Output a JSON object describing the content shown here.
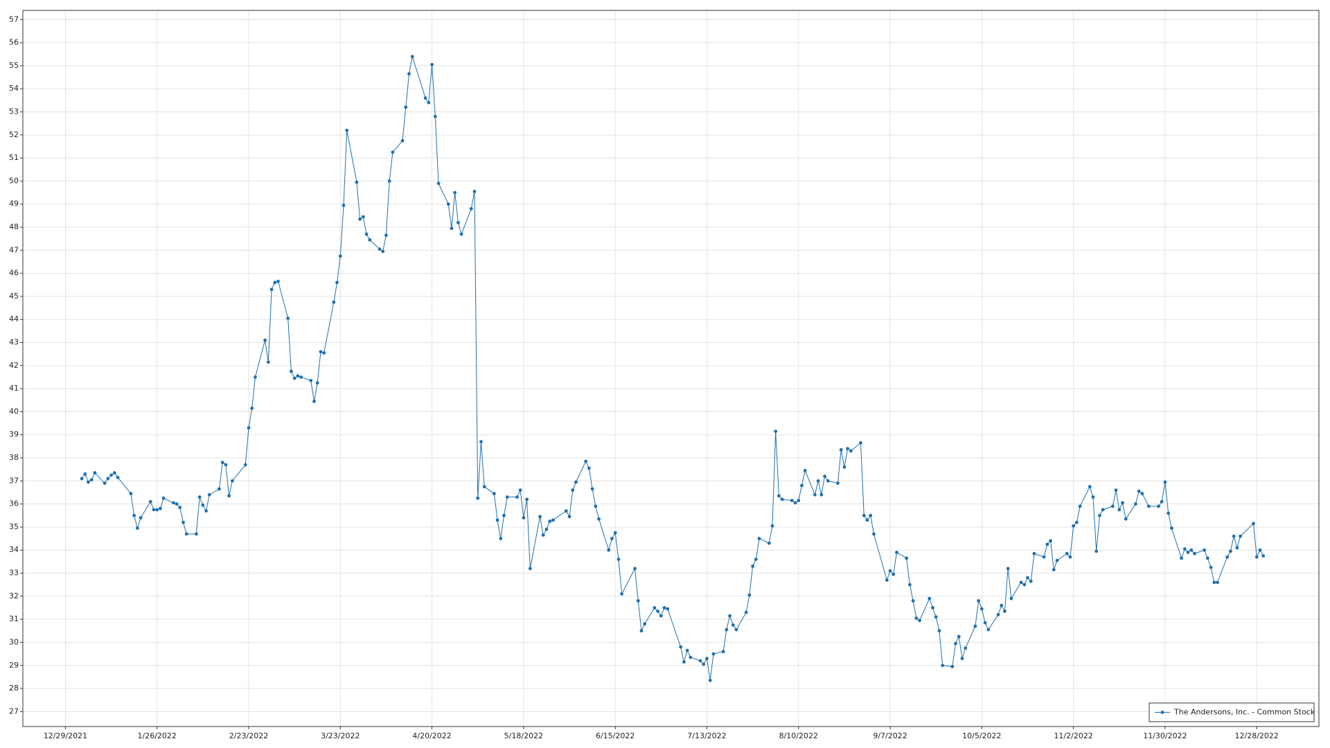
{
  "chart_data": {
    "type": "line",
    "x": [
      "1/3/2022",
      "1/4/2022",
      "1/5/2022",
      "1/6/2022",
      "1/7/2022",
      "1/10/2022",
      "1/11/2022",
      "1/12/2022",
      "1/13/2022",
      "1/14/2022",
      "1/18/2022",
      "1/19/2022",
      "1/20/2022",
      "1/21/2022",
      "1/24/2022",
      "1/25/2022",
      "1/26/2022",
      "1/27/2022",
      "1/28/2022",
      "1/31/2022",
      "2/1/2022",
      "2/2/2022",
      "2/3/2022",
      "2/4/2022",
      "2/7/2022",
      "2/8/2022",
      "2/9/2022",
      "2/10/2022",
      "2/11/2022",
      "2/14/2022",
      "2/15/2022",
      "2/16/2022",
      "2/17/2022",
      "2/18/2022",
      "2/22/2022",
      "2/23/2022",
      "2/24/2022",
      "2/25/2022",
      "2/28/2022",
      "3/1/2022",
      "3/2/2022",
      "3/3/2022",
      "3/4/2022",
      "3/7/2022",
      "3/8/2022",
      "3/9/2022",
      "3/10/2022",
      "3/11/2022",
      "3/14/2022",
      "3/15/2022",
      "3/16/2022",
      "3/17/2022",
      "3/18/2022",
      "3/21/2022",
      "3/22/2022",
      "3/23/2022",
      "3/24/2022",
      "3/25/2022",
      "3/28/2022",
      "3/29/2022",
      "3/30/2022",
      "3/31/2022",
      "4/1/2022",
      "4/4/2022",
      "4/5/2022",
      "4/6/2022",
      "4/7/2022",
      "4/8/2022",
      "4/11/2022",
      "4/12/2022",
      "4/13/2022",
      "4/14/2022",
      "4/18/2022",
      "4/19/2022",
      "4/20/2022",
      "4/21/2022",
      "4/22/2022",
      "4/25/2022",
      "4/26/2022",
      "4/27/2022",
      "4/28/2022",
      "4/29/2022",
      "5/2/2022",
      "5/3/2022",
      "5/4/2022",
      "5/5/2022",
      "5/6/2022",
      "5/9/2022",
      "5/10/2022",
      "5/11/2022",
      "5/12/2022",
      "5/13/2022",
      "5/16/2022",
      "5/17/2022",
      "5/18/2022",
      "5/19/2022",
      "5/20/2022",
      "5/23/2022",
      "5/24/2022",
      "5/25/2022",
      "5/26/2022",
      "5/27/2022",
      "5/31/2022",
      "6/1/2022",
      "6/2/2022",
      "6/3/2022",
      "6/6/2022",
      "6/7/2022",
      "6/8/2022",
      "6/9/2022",
      "6/10/2022",
      "6/13/2022",
      "6/14/2022",
      "6/15/2022",
      "6/16/2022",
      "6/17/2022",
      "6/21/2022",
      "6/22/2022",
      "6/23/2022",
      "6/24/2022",
      "6/27/2022",
      "6/28/2022",
      "6/29/2022",
      "6/30/2022",
      "7/1/2022",
      "7/5/2022",
      "7/6/2022",
      "7/7/2022",
      "7/8/2022",
      "7/11/2022",
      "7/12/2022",
      "7/13/2022",
      "7/14/2022",
      "7/15/2022",
      "7/18/2022",
      "7/19/2022",
      "7/20/2022",
      "7/21/2022",
      "7/22/2022",
      "7/25/2022",
      "7/26/2022",
      "7/27/2022",
      "7/28/2022",
      "7/29/2022",
      "8/1/2022",
      "8/2/2022",
      "8/3/2022",
      "8/4/2022",
      "8/5/2022",
      "8/8/2022",
      "8/9/2022",
      "8/10/2022",
      "8/11/2022",
      "8/12/2022",
      "8/15/2022",
      "8/16/2022",
      "8/17/2022",
      "8/18/2022",
      "8/19/2022",
      "8/22/2022",
      "8/23/2022",
      "8/24/2022",
      "8/25/2022",
      "8/26/2022",
      "8/29/2022",
      "8/30/2022",
      "8/31/2022",
      "9/1/2022",
      "9/2/2022",
      "9/6/2022",
      "9/7/2022",
      "9/8/2022",
      "9/9/2022",
      "9/12/2022",
      "9/13/2022",
      "9/14/2022",
      "9/15/2022",
      "9/16/2022",
      "9/19/2022",
      "9/20/2022",
      "9/21/2022",
      "9/22/2022",
      "9/23/2022",
      "9/26/2022",
      "9/27/2022",
      "9/28/2022",
      "9/29/2022",
      "9/30/2022",
      "10/3/2022",
      "10/4/2022",
      "10/5/2022",
      "10/6/2022",
      "10/7/2022",
      "10/10/2022",
      "10/11/2022",
      "10/12/2022",
      "10/13/2022",
      "10/14/2022",
      "10/17/2022",
      "10/18/2022",
      "10/19/2022",
      "10/20/2022",
      "10/21/2022",
      "10/24/2022",
      "10/25/2022",
      "10/26/2022",
      "10/27/2022",
      "10/28/2022",
      "10/31/2022",
      "11/1/2022",
      "11/2/2022",
      "11/3/2022",
      "11/4/2022",
      "11/7/2022",
      "11/8/2022",
      "11/9/2022",
      "11/10/2022",
      "11/11/2022",
      "11/14/2022",
      "11/15/2022",
      "11/16/2022",
      "11/17/2022",
      "11/18/2022",
      "11/21/2022",
      "11/22/2022",
      "11/23/2022",
      "11/25/2022",
      "11/28/2022",
      "11/29/2022",
      "11/30/2022",
      "12/1/2022",
      "12/2/2022",
      "12/5/2022",
      "12/6/2022",
      "12/7/2022",
      "12/8/2022",
      "12/9/2022",
      "12/12/2022",
      "12/13/2022",
      "12/14/2022",
      "12/15/2022",
      "12/16/2022",
      "12/19/2022",
      "12/20/2022",
      "12/21/2022",
      "12/22/2022",
      "12/23/2022",
      "12/27/2022",
      "12/28/2022",
      "12/29/2022",
      "12/30/2022"
    ],
    "series": [
      {
        "name": "The Andersons, Inc. - Common Stock",
        "color": "#1f6fae",
        "values": [
          37.1,
          37.3,
          36.95,
          37.05,
          37.35,
          36.9,
          37.1,
          37.25,
          37.35,
          37.15,
          36.45,
          35.5,
          34.95,
          35.4,
          36.1,
          35.75,
          35.75,
          35.8,
          36.25,
          36.05,
          36.0,
          35.85,
          35.2,
          34.7,
          34.7,
          36.3,
          35.95,
          35.7,
          36.4,
          36.65,
          37.8,
          37.7,
          36.35,
          37.0,
          37.7,
          39.3,
          40.15,
          41.5,
          43.1,
          42.15,
          45.3,
          45.6,
          45.65,
          44.05,
          41.75,
          41.45,
          41.55,
          41.5,
          41.35,
          40.45,
          41.25,
          42.6,
          42.55,
          44.75,
          45.6,
          46.75,
          48.95,
          52.2,
          49.95,
          48.35,
          48.45,
          47.7,
          47.45,
          47.05,
          46.95,
          47.65,
          50.0,
          51.25,
          51.75,
          53.2,
          54.65,
          55.4,
          53.6,
          53.4,
          55.05,
          52.8,
          49.9,
          49.0,
          47.95,
          49.5,
          48.2,
          47.7,
          48.8,
          49.55,
          36.25,
          38.7,
          36.75,
          36.45,
          35.3,
          34.5,
          35.5,
          36.3,
          36.3,
          36.6,
          35.4,
          36.2,
          33.2,
          35.45,
          34.65,
          34.9,
          35.25,
          35.3,
          35.7,
          35.45,
          36.6,
          36.95,
          37.85,
          37.55,
          36.65,
          35.9,
          35.35,
          34.0,
          34.5,
          34.75,
          33.6,
          32.1,
          33.2,
          31.8,
          30.5,
          30.8,
          31.5,
          31.35,
          31.15,
          31.5,
          31.45,
          29.8,
          29.15,
          29.65,
          29.35,
          29.2,
          29.05,
          29.3,
          28.35,
          29.5,
          29.6,
          30.55,
          31.15,
          30.75,
          30.55,
          31.3,
          32.05,
          33.3,
          33.6,
          34.5,
          34.3,
          35.05,
          39.15,
          36.35,
          36.2,
          36.15,
          36.05,
          36.15,
          36.8,
          37.45,
          36.4,
          37.0,
          36.4,
          37.2,
          37.0,
          36.9,
          38.35,
          37.6,
          38.4,
          38.3,
          38.65,
          35.5,
          35.3,
          35.5,
          34.7,
          32.7,
          33.1,
          32.95,
          33.9,
          33.65,
          32.5,
          31.8,
          31.05,
          30.95,
          31.9,
          31.5,
          31.1,
          30.5,
          29.0,
          28.95,
          29.95,
          30.25,
          29.3,
          29.75,
          30.7,
          31.8,
          31.45,
          30.85,
          30.55,
          31.2,
          31.6,
          31.35,
          33.2,
          31.9,
          32.6,
          32.5,
          32.8,
          32.65,
          33.85,
          33.7,
          34.25,
          34.4,
          33.15,
          33.55,
          33.85,
          33.7,
          35.05,
          35.2,
          35.9,
          36.75,
          36.3,
          33.95,
          35.5,
          35.75,
          35.9,
          36.6,
          35.75,
          36.05,
          35.35,
          36.0,
          36.55,
          36.45,
          35.9,
          35.9,
          36.1,
          36.95,
          35.6,
          34.95,
          33.65,
          34.05,
          33.9,
          34.0,
          33.85,
          34.0,
          33.65,
          33.25,
          32.6,
          32.6,
          33.7,
          33.95,
          34.6,
          34.1,
          34.6,
          35.15,
          33.7,
          34.0,
          33.75
        ]
      }
    ],
    "xlim": [
      "12/16/2021",
      "1/16/2023"
    ],
    "xticks": [
      "12/29/2021",
      "1/26/2022",
      "2/23/2022",
      "3/23/2022",
      "4/20/2022",
      "5/18/2022",
      "6/15/2022",
      "7/13/2022",
      "8/10/2022",
      "9/7/2022",
      "10/5/2022",
      "11/2/2022",
      "11/30/2022",
      "12/28/2022"
    ],
    "ylim": [
      26.35,
      57.4
    ],
    "yticks": [
      27,
      28,
      29,
      30,
      31,
      32,
      33,
      34,
      35,
      36,
      37,
      38,
      39,
      40,
      41,
      42,
      43,
      44,
      45,
      46,
      47,
      48,
      49,
      50,
      51,
      52,
      53,
      54,
      55,
      56,
      57
    ],
    "grid": true,
    "legend": "bottom-right"
  }
}
